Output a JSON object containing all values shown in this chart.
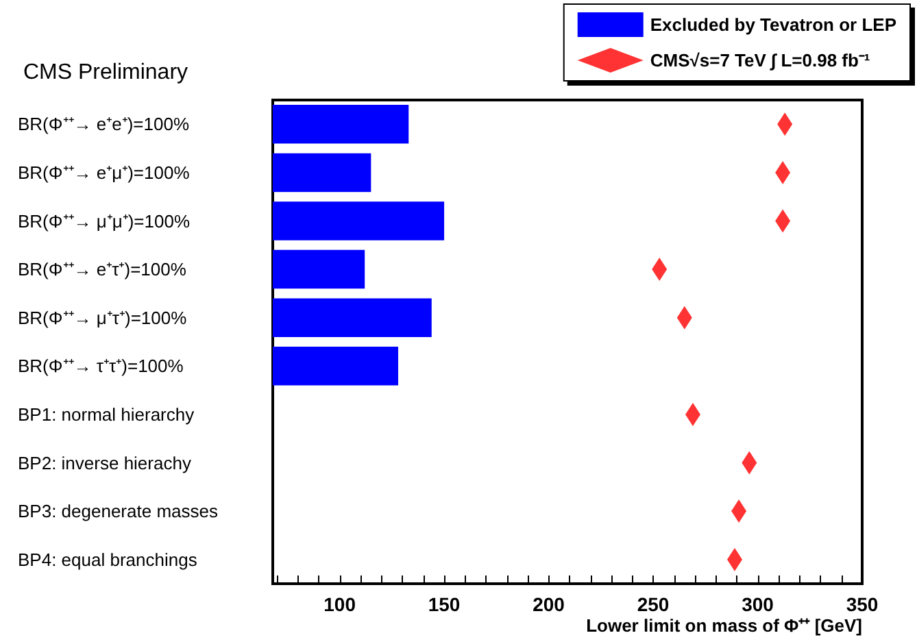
{
  "chart_data": {
    "type": "bar",
    "orientation": "horizontal",
    "title": "CMS Preliminary",
    "xlabel": "Lower limit on mass of Φ⁺⁺ [GeV]",
    "categories": [
      "BR(Φ⁺⁺→ e⁺e⁺)=100%",
      "BR(Φ⁺⁺→ e⁺μ⁺)=100%",
      "BR(Φ⁺⁺→ μ⁺μ⁺)=100%",
      "BR(Φ⁺⁺→ e⁺τ⁺)=100%",
      "BR(Φ⁺⁺→ μ⁺τ⁺)=100%",
      "BR(Φ⁺⁺→ τ⁺τ⁺)=100%",
      "BP1: normal hierarchy",
      "BP2: inverse hierachy",
      "BP3: degenerate masses",
      "BP4: equal branchings"
    ],
    "series": [
      {
        "name": "Excluded by Tevatron or LEP",
        "color": "#0000ff",
        "values": [
          133,
          115,
          150,
          112,
          144,
          128,
          null,
          null,
          null,
          null
        ]
      },
      {
        "name": "CMS√s=7 TeV ∫ L=0.98 fb⁻¹",
        "type": "scatter",
        "marker": "diamond",
        "color": "#ff0000",
        "values": [
          313,
          312,
          312,
          253,
          265,
          null,
          269,
          296,
          291,
          289
        ]
      }
    ],
    "xlim": [
      68,
      350
    ],
    "xticks": [
      {
        "value": 70,
        "label": null
      },
      {
        "value": 80,
        "label": null
      },
      {
        "value": 90,
        "label": null
      },
      100,
      {
        "value": 110,
        "label": null
      },
      {
        "value": 120,
        "label": null
      },
      {
        "value": 130,
        "label": null
      },
      {
        "value": 140,
        "label": null
      },
      150,
      {
        "value": 160,
        "label": null
      },
      {
        "value": 170,
        "label": null
      },
      {
        "value": 180,
        "label": null
      },
      {
        "value": 190,
        "label": null
      },
      200,
      {
        "value": 210,
        "label": null
      },
      {
        "value": 220,
        "label": null
      },
      {
        "value": 230,
        "label": null
      },
      {
        "value": 240,
        "label": null
      },
      250,
      {
        "value": 260,
        "label": null
      },
      {
        "value": 270,
        "label": null
      },
      {
        "value": 280,
        "label": null
      },
      {
        "value": 290,
        "label": null
      },
      300,
      {
        "value": 310,
        "label": null
      },
      {
        "value": 320,
        "label": null
      },
      {
        "value": 330,
        "label": null
      },
      {
        "value": 340,
        "label": null
      },
      350
    ],
    "legend": "top right",
    "grid": false
  }
}
